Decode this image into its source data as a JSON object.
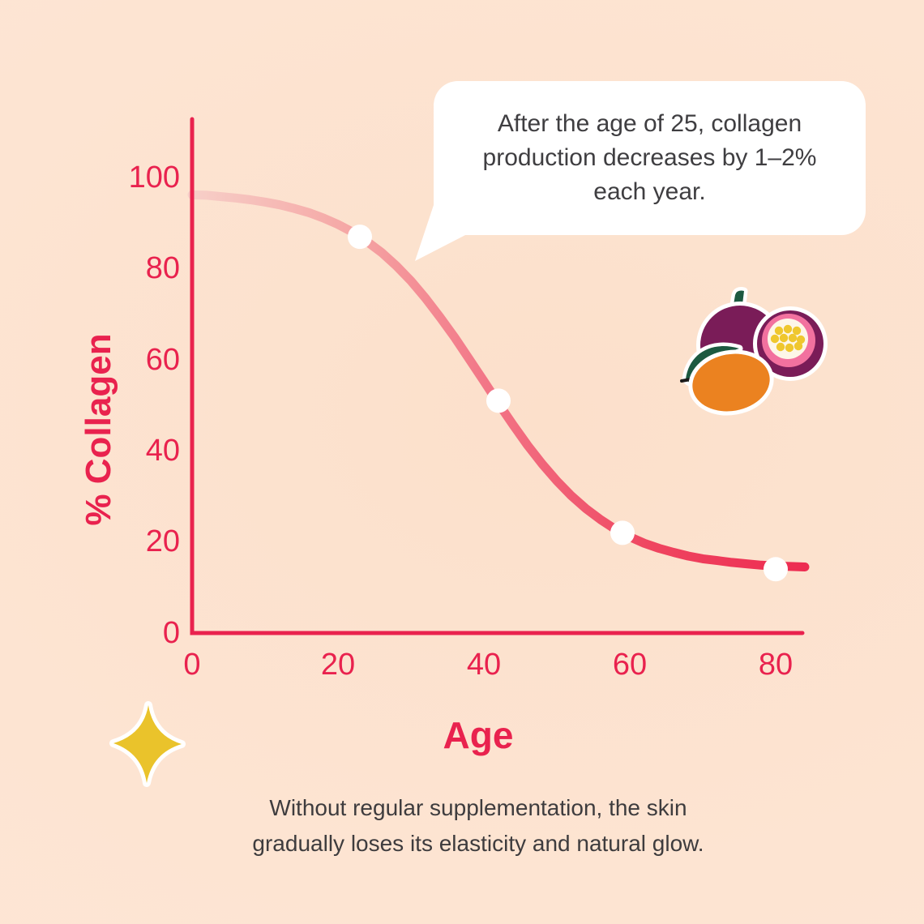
{
  "bubble": {
    "lines": [
      "After the age of 25, collagen",
      "production decreases by 1–2%",
      "each year."
    ]
  },
  "caption": {
    "lines": [
      "Without regular supplementation, the skin",
      "gradually loses its elasticity and natural glow."
    ]
  },
  "chart_data": {
    "type": "line",
    "title": "",
    "xlabel": "Age",
    "ylabel": "% Collagen",
    "xlim": [
      0,
      84
    ],
    "ylim": [
      0,
      100
    ],
    "xticks": [
      "0",
      "20",
      "40",
      "60",
      "80"
    ],
    "yticks": [
      "100",
      "80",
      "60",
      "40",
      "20",
      "0"
    ],
    "grid": false,
    "legend": "none",
    "annotation": "After the age of 25, collagen production decreases by 1–2% each year.",
    "series": [
      {
        "name": "% Collagen by age",
        "points": [
          [
            0,
            96.2
          ],
          [
            2,
            96.1
          ],
          [
            4,
            95.8
          ],
          [
            6,
            95.5
          ],
          [
            8,
            95.1
          ],
          [
            10,
            94.6
          ],
          [
            12,
            94.0
          ],
          [
            14,
            93.2
          ],
          [
            16,
            92.3
          ],
          [
            18,
            91.1
          ],
          [
            20,
            89.7
          ],
          [
            22,
            88.0
          ],
          [
            24,
            85.9
          ],
          [
            26,
            83.5
          ],
          [
            28,
            80.6
          ],
          [
            30,
            77.3
          ],
          [
            32,
            73.5
          ],
          [
            34,
            69.3
          ],
          [
            36,
            64.9
          ],
          [
            38,
            60.1
          ],
          [
            40,
            55.3
          ],
          [
            42,
            50.4
          ],
          [
            44,
            45.7
          ],
          [
            46,
            41.2
          ],
          [
            48,
            37.1
          ],
          [
            50,
            33.4
          ],
          [
            52,
            30.1
          ],
          [
            54,
            27.3
          ],
          [
            56,
            24.9
          ],
          [
            58,
            22.8
          ],
          [
            60,
            21.1
          ],
          [
            62,
            19.7
          ],
          [
            64,
            18.6
          ],
          [
            66,
            17.7
          ],
          [
            68,
            16.9
          ],
          [
            70,
            16.3
          ],
          [
            72,
            15.9
          ],
          [
            74,
            15.5
          ],
          [
            76,
            15.2
          ],
          [
            78,
            14.9
          ],
          [
            80,
            14.7
          ],
          [
            82,
            14.6
          ],
          [
            84,
            14.5
          ]
        ]
      }
    ],
    "data_points": [
      [
        23,
        87
      ],
      [
        42,
        51
      ],
      [
        59,
        22
      ],
      [
        80,
        14
      ]
    ]
  },
  "colors": {
    "background": "#FDE5D4",
    "axis": "#E9224E",
    "tick_label": "#E9224E",
    "curve_gradient": [
      "#F7CFC8",
      "#F5A8A6",
      "#F27284",
      "#EF4560",
      "#ED2C51"
    ],
    "dot": "#FFFFFF",
    "bubble_bg": "#FFFFFF",
    "bubble_text": "#3F3E41",
    "caption_text": "#3E3C3E",
    "sparkle": "#EAC32B",
    "mango": "#EB8220",
    "passionfruit": "#7A1C58",
    "passionfruit_ring": "#F2719F",
    "passionfruit_flesh": "#FDF6E8",
    "passionfruit_seeds": "#EFC72E",
    "leaf": "#1C5940"
  },
  "icons": {
    "fruit_sticker": "passionfruit-and-mango-sticker",
    "sparkle": "sparkle-star-sticker"
  }
}
